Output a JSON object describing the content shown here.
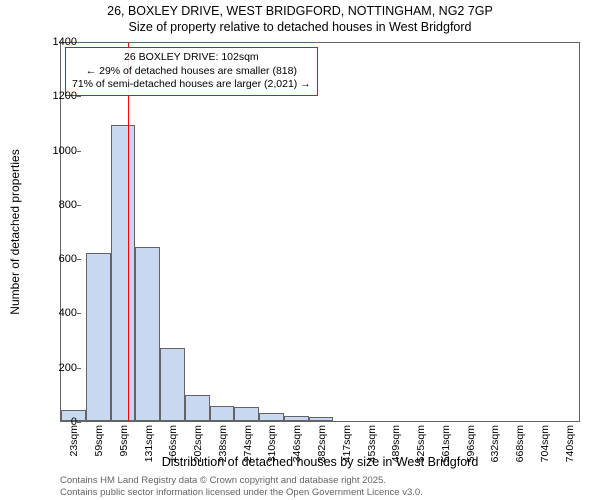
{
  "header": {
    "line1": "26, BOXLEY DRIVE, WEST BRIDGFORD, NOTTINGHAM, NG2 7GP",
    "line2": "Size of property relative to detached houses in West Bridgford"
  },
  "y_axis": {
    "label": "Number of detached properties",
    "min": 0,
    "max": 1400,
    "ticks": [
      0,
      200,
      400,
      600,
      800,
      1000,
      1200,
      1400
    ]
  },
  "x_axis": {
    "label": "Distribution of detached houses by size in West Bridgford",
    "tick_labels": [
      "23sqm",
      "59sqm",
      "95sqm",
      "131sqm",
      "166sqm",
      "202sqm",
      "238sqm",
      "274sqm",
      "310sqm",
      "346sqm",
      "382sqm",
      "417sqm",
      "453sqm",
      "489sqm",
      "525sqm",
      "561sqm",
      "596sqm",
      "632sqm",
      "668sqm",
      "704sqm",
      "740sqm"
    ]
  },
  "histogram": {
    "type": "histogram",
    "bar_fill": "#c8d8f0",
    "bar_stroke": "#646464",
    "values": [
      40,
      620,
      1090,
      640,
      270,
      95,
      55,
      50,
      30,
      20,
      15,
      0,
      0,
      0,
      0,
      0,
      0,
      0,
      0,
      0,
      0
    ]
  },
  "reference_line": {
    "color": "#ff0000",
    "position_sqm": 102
  },
  "annotation": {
    "border_color": "#ff0000",
    "line1": "26 BOXLEY DRIVE: 102sqm",
    "line2": "← 29% of detached houses are smaller (818)",
    "line3": "71% of semi-detached houses are larger (2,021) →"
  },
  "footer": {
    "line1": "Contains HM Land Registry data © Crown copyright and database right 2025.",
    "line2": "Contains public sector information licensed under the Open Government Licence v3.0."
  },
  "styling": {
    "background_color": "#ffffff",
    "axis_color": "#646464",
    "text_color": "#000000",
    "footer_color": "#646464",
    "title_fontsize": 12.5,
    "label_fontsize": 12,
    "tick_fontsize": 11,
    "anno_fontsize": 10.5,
    "footer_fontsize": 9.5
  }
}
